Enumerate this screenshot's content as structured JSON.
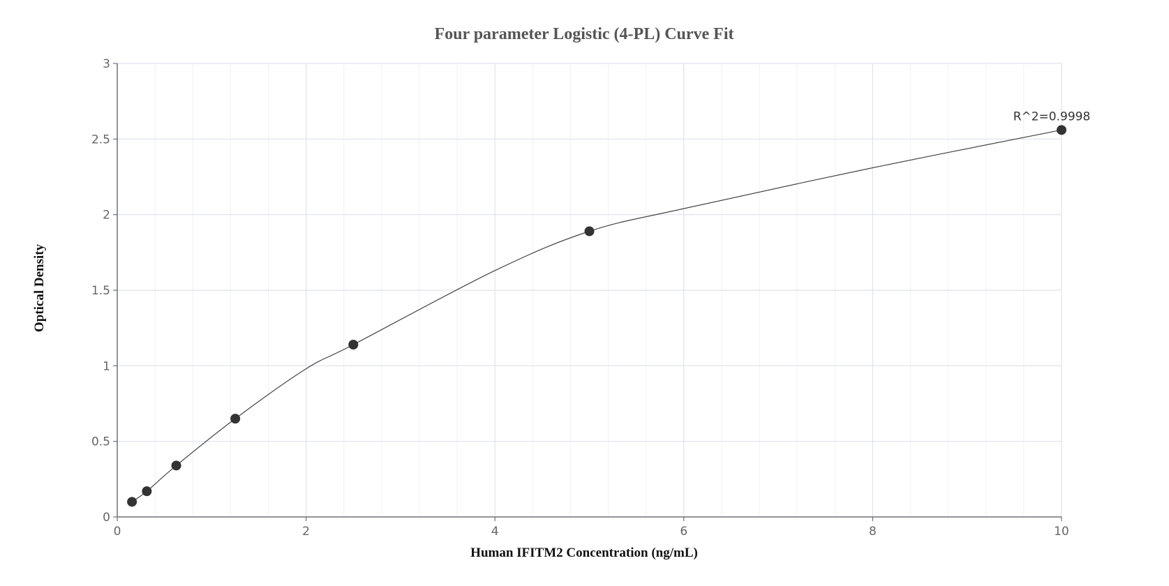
{
  "chart_data": {
    "type": "scatter",
    "title": "Four parameter Logistic (4-PL) Curve Fit",
    "xlabel": "Human IFITM2 Concentration (ng/mL)",
    "ylabel": "Optical Density",
    "xlim": [
      0,
      10
    ],
    "ylim": [
      0,
      3
    ],
    "x_ticks": [
      0,
      2,
      4,
      6,
      8,
      10
    ],
    "y_ticks": [
      0,
      0.5,
      1,
      1.5,
      2,
      2.5,
      3
    ],
    "x_tick_labels": [
      "0",
      "2",
      "4",
      "6",
      "8",
      "10"
    ],
    "y_tick_labels": [
      "0",
      "0.5",
      "1",
      "1.5",
      "2",
      "2.5",
      "3"
    ],
    "grid": true,
    "legend": "none",
    "series": [
      {
        "x": [
          0.156,
          0.313,
          0.625,
          1.25,
          2.5,
          5,
          10
        ],
        "y": [
          0.1,
          0.17,
          0.34,
          0.65,
          1.14,
          1.89,
          2.56
        ]
      }
    ],
    "fit_curve": {
      "x": [
        0.156,
        0.313,
        0.625,
        1.25,
        2,
        2.5,
        4,
        5,
        6,
        8,
        10
      ],
      "y": [
        0.1,
        0.17,
        0.34,
        0.65,
        0.98,
        1.14,
        1.63,
        1.89,
        2.04,
        2.31,
        2.56
      ]
    },
    "annotation": {
      "text": "R^2=0.9998",
      "x": 10,
      "y": 2.56
    },
    "colors": {
      "points": "#333333",
      "curve": "#444444",
      "grid": "#dde3ee",
      "axis": "#6e7079"
    }
  }
}
